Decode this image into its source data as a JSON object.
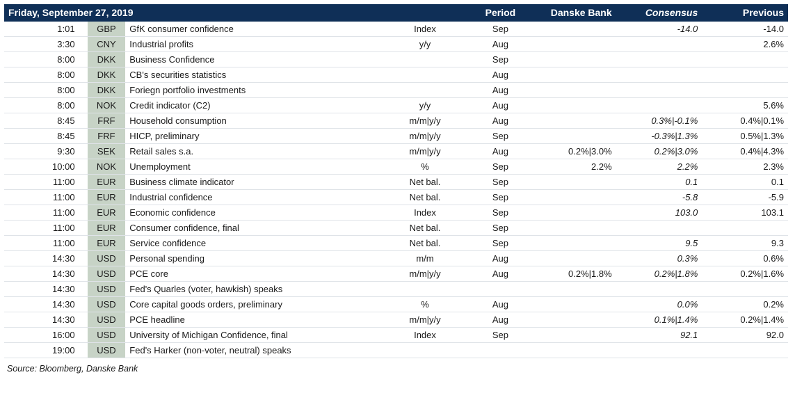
{
  "colors": {
    "header_bg": "#0f2f57",
    "header_fg": "#ffffff",
    "ccy_bg": "#c7d3c6",
    "row_border": "#dfe3e8",
    "text": "#1a1a1a",
    "page_bg": "#ffffff"
  },
  "title_date": "Friday, September 27, 2019",
  "columns": {
    "period": "Period",
    "danske": "Danske Bank",
    "consensus": "Consensus",
    "previous": "Previous"
  },
  "source": "Source: Bloomberg, Danske Bank",
  "rows": [
    {
      "time": "1:01",
      "ccy": "GBP",
      "event": "GfK consumer confidence",
      "unit": "Index",
      "period": "Sep",
      "danske": "",
      "consensus": "-14.0",
      "previous": "-14.0"
    },
    {
      "time": "3:30",
      "ccy": "CNY",
      "event": "Industrial profits",
      "unit": "y/y",
      "period": "Aug",
      "danske": "",
      "consensus": "",
      "previous": "2.6%"
    },
    {
      "time": "8:00",
      "ccy": "DKK",
      "event": "Business Confidence",
      "unit": "",
      "period": "Sep",
      "danske": "",
      "consensus": "",
      "previous": ""
    },
    {
      "time": "8:00",
      "ccy": "DKK",
      "event": "CB's securities statistics",
      "unit": "",
      "period": "Aug",
      "danske": "",
      "consensus": "",
      "previous": ""
    },
    {
      "time": "8:00",
      "ccy": "DKK",
      "event": "Foriegn portfolio investments",
      "unit": "",
      "period": "Aug",
      "danske": "",
      "consensus": "",
      "previous": ""
    },
    {
      "time": "8:00",
      "ccy": "NOK",
      "event": "Credit indicator (C2)",
      "unit": "y/y",
      "period": "Aug",
      "danske": "",
      "consensus": "",
      "previous": "5.6%"
    },
    {
      "time": "8:45",
      "ccy": "FRF",
      "event": "Household consumption",
      "unit": "m/m|y/y",
      "period": "Aug",
      "danske": "",
      "consensus": "0.3%|-0.1%",
      "previous": "0.4%|0.1%"
    },
    {
      "time": "8:45",
      "ccy": "FRF",
      "event": "HICP, preliminary",
      "unit": "m/m|y/y",
      "period": "Sep",
      "danske": "",
      "consensus": "-0.3%|1.3%",
      "previous": "0.5%|1.3%"
    },
    {
      "time": "9:30",
      "ccy": "SEK",
      "event": "Retail sales s.a.",
      "unit": "m/m|y/y",
      "period": "Aug",
      "danske": "0.2%|3.0%",
      "consensus": "0.2%|3.0%",
      "previous": "0.4%|4.3%"
    },
    {
      "time": "10:00",
      "ccy": "NOK",
      "event": "Unemployment",
      "unit": "%",
      "period": "Sep",
      "danske": "2.2%",
      "consensus": "2.2%",
      "previous": "2.3%"
    },
    {
      "time": "11:00",
      "ccy": "EUR",
      "event": "Business climate indicator",
      "unit": "Net bal.",
      "period": "Sep",
      "danske": "",
      "consensus": "0.1",
      "previous": "0.1"
    },
    {
      "time": "11:00",
      "ccy": "EUR",
      "event": "Industrial confidence",
      "unit": "Net bal.",
      "period": "Sep",
      "danske": "",
      "consensus": "-5.8",
      "previous": "-5.9"
    },
    {
      "time": "11:00",
      "ccy": "EUR",
      "event": "Economic confidence",
      "unit": "Index",
      "period": "Sep",
      "danske": "",
      "consensus": "103.0",
      "previous": "103.1"
    },
    {
      "time": "11:00",
      "ccy": "EUR",
      "event": "Consumer confidence, final",
      "unit": "Net bal.",
      "period": "Sep",
      "danske": "",
      "consensus": "",
      "previous": ""
    },
    {
      "time": "11:00",
      "ccy": "EUR",
      "event": "Service confidence",
      "unit": "Net bal.",
      "period": "Sep",
      "danske": "",
      "consensus": "9.5",
      "previous": "9.3"
    },
    {
      "time": "14:30",
      "ccy": "USD",
      "event": "Personal spending",
      "unit": "m/m",
      "period": "Aug",
      "danske": "",
      "consensus": "0.3%",
      "previous": "0.6%"
    },
    {
      "time": "14:30",
      "ccy": "USD",
      "event": "PCE core",
      "unit": "m/m|y/y",
      "period": "Aug",
      "danske": "0.2%|1.8%",
      "consensus": "0.2%|1.8%",
      "previous": "0.2%|1.6%"
    },
    {
      "time": "14:30",
      "ccy": "USD",
      "event": "Fed's Quarles (voter, hawkish) speaks",
      "unit": "",
      "period": "",
      "danske": "",
      "consensus": "",
      "previous": ""
    },
    {
      "time": "14:30",
      "ccy": "USD",
      "event": "Core capital goods orders, preliminary",
      "unit": "%",
      "period": "Aug",
      "danske": "",
      "consensus": "0.0%",
      "previous": "0.2%"
    },
    {
      "time": "14:30",
      "ccy": "USD",
      "event": "PCE headline",
      "unit": "m/m|y/y",
      "period": "Aug",
      "danske": "",
      "consensus": "0.1%|1.4%",
      "previous": "0.2%|1.4%"
    },
    {
      "time": "16:00",
      "ccy": "USD",
      "event": "University of Michigan Confidence, final",
      "unit": "Index",
      "period": "Sep",
      "danske": "",
      "consensus": "92.1",
      "previous": "92.0"
    },
    {
      "time": "19:00",
      "ccy": "USD",
      "event": "Fed's Harker (non-voter, neutral) speaks",
      "unit": "",
      "period": "",
      "danske": "",
      "consensus": "",
      "previous": ""
    }
  ]
}
